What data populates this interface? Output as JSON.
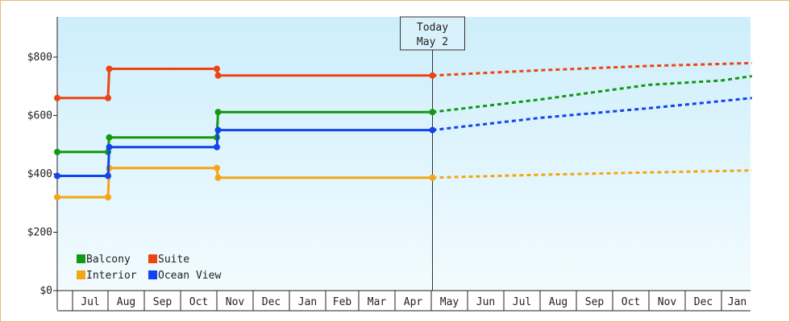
{
  "chart_data": {
    "type": "line",
    "step": true,
    "title": "",
    "xlabel": "",
    "ylabel": "",
    "ylim": [
      0,
      940
    ],
    "y_ticks": [
      {
        "value": 0,
        "label": "$0"
      },
      {
        "value": 200,
        "label": "$200"
      },
      {
        "value": 400,
        "label": "$400"
      },
      {
        "value": 600,
        "label": "$600"
      },
      {
        "value": 800,
        "label": "$800"
      }
    ],
    "x_tick_labels": [
      "Jul",
      "Aug",
      "Sep",
      "Oct",
      "Nov",
      "Dec",
      "Jan",
      "Feb",
      "Mar",
      "Apr",
      "May",
      "Jun",
      "Jul",
      "Aug",
      "Sep",
      "Oct",
      "Nov",
      "Dec",
      "Jan"
    ],
    "x_range": [
      "2022-06-01",
      "2024-01-31"
    ],
    "today": {
      "line1": "Today",
      "line2": "May 2",
      "date": "2023-05-02"
    },
    "legend": {
      "placement": "bottom-left",
      "columns": 2
    },
    "series": [
      {
        "name": "Balcony",
        "color": "#119911",
        "history": [
          [
            "2022-06-01",
            475
          ],
          [
            "2022-08-01",
            475
          ],
          [
            "2022-08-02",
            525
          ],
          [
            "2022-11-01",
            525
          ],
          [
            "2022-11-02",
            612
          ],
          [
            "2023-05-02",
            612
          ]
        ],
        "forecast": [
          [
            "2023-05-02",
            612
          ],
          [
            "2023-08-01",
            655
          ],
          [
            "2023-11-01",
            705
          ],
          [
            "2024-01-01",
            720
          ],
          [
            "2024-01-31",
            735
          ]
        ]
      },
      {
        "name": "Suite",
        "color": "#ee4411",
        "history": [
          [
            "2022-06-01",
            660
          ],
          [
            "2022-08-01",
            660
          ],
          [
            "2022-08-02",
            760
          ],
          [
            "2022-11-01",
            760
          ],
          [
            "2022-11-02",
            737
          ],
          [
            "2023-05-02",
            737
          ]
        ],
        "forecast": [
          [
            "2023-05-02",
            737
          ],
          [
            "2023-08-01",
            755
          ],
          [
            "2023-11-01",
            770
          ],
          [
            "2024-01-31",
            780
          ]
        ]
      },
      {
        "name": "Interior",
        "color": "#f5a511",
        "history": [
          [
            "2022-06-01",
            320
          ],
          [
            "2022-08-01",
            320
          ],
          [
            "2022-08-02",
            420
          ],
          [
            "2022-11-01",
            420
          ],
          [
            "2022-11-02",
            387
          ],
          [
            "2023-05-02",
            387
          ]
        ],
        "forecast": [
          [
            "2023-05-02",
            387
          ],
          [
            "2023-08-01",
            397
          ],
          [
            "2023-11-01",
            405
          ],
          [
            "2024-01-31",
            412
          ]
        ]
      },
      {
        "name": "Ocean View",
        "color": "#1144ee",
        "history": [
          [
            "2022-06-01",
            393
          ],
          [
            "2022-08-01",
            393
          ],
          [
            "2022-08-02",
            492
          ],
          [
            "2022-11-01",
            492
          ],
          [
            "2022-11-02",
            550
          ],
          [
            "2023-05-02",
            550
          ]
        ],
        "forecast": [
          [
            "2023-05-02",
            550
          ],
          [
            "2023-08-01",
            592
          ],
          [
            "2023-11-01",
            625
          ],
          [
            "2024-01-31",
            660
          ]
        ]
      }
    ]
  }
}
